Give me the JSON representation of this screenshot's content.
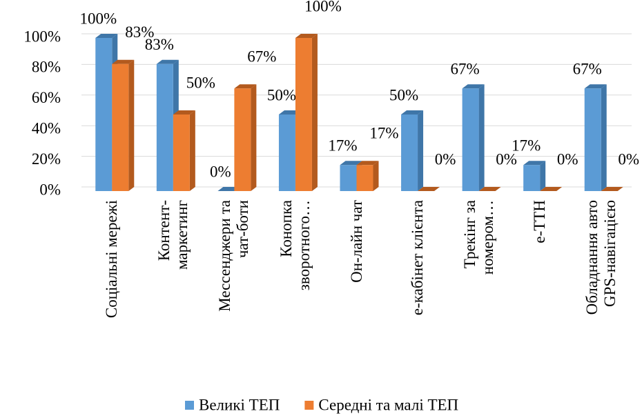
{
  "chart_data": {
    "type": "bar3d",
    "categories": [
      "Соціальні мережі",
      "Контент-\nмаркетинг",
      "Мессенджери та\nчат-боти",
      "Конопка\nзворотного…",
      "Он-лайн чат",
      "е-кабінет клієнта",
      "Трекінг за\nномером…",
      "е-ТТН",
      "Обладнання авто\nGPS-навігацією"
    ],
    "series": [
      {
        "name": "Великі ТЕП",
        "color": "#5b9bd5",
        "side": "#3f76a8",
        "values": [
          100,
          83,
          0,
          50,
          17,
          50,
          67,
          17,
          67
        ],
        "value_labels": [
          "100%",
          "83%",
          "0%",
          "50%",
          "17%",
          "50%",
          "67%",
          "17%",
          "67%"
        ]
      },
      {
        "name": "Середні та малі ТЕП",
        "color": "#ed7d31",
        "side": "#b35a1e",
        "values": [
          83,
          50,
          67,
          100,
          17,
          0,
          0,
          0,
          0
        ],
        "value_labels": [
          "83%",
          "50%",
          "67%",
          "100%",
          "17%",
          "0%",
          "0%",
          "0%",
          "0%"
        ]
      }
    ],
    "ylim": [
      0,
      100
    ],
    "yticks": [
      {
        "value": 0,
        "label": "0%"
      },
      {
        "value": 20,
        "label": "20%"
      },
      {
        "value": 40,
        "label": "40%"
      },
      {
        "value": 60,
        "label": "60%"
      },
      {
        "value": 80,
        "label": "80%"
      },
      {
        "value": 100,
        "label": "100%"
      }
    ],
    "grid": true,
    "legend": "bottom"
  }
}
